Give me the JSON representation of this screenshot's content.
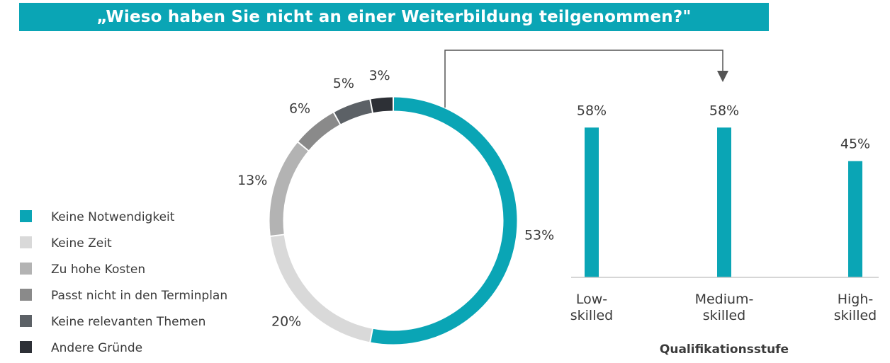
{
  "title": "„Wieso haben Sie nicht an einer Weiterbildung teilgenommen?\"",
  "chart_data": [
    {
      "type": "pie",
      "variant": "donut",
      "categories": [
        "Keine Notwendigkeit",
        "Keine Zeit",
        "Zu hohe Kosten",
        "Passt nicht in den Terminplan",
        "Keine relevanten Themen",
        "Andere Gründe"
      ],
      "values": [
        53,
        20,
        13,
        6,
        5,
        3
      ],
      "labels": [
        "53%",
        "20%",
        "13%",
        "6%",
        "5%",
        "3%"
      ],
      "colors": [
        "#0aa5b5",
        "#d9d9d9",
        "#b3b3b3",
        "#8a8a8a",
        "#5c6166",
        "#2d3036"
      ],
      "legend_position": "left"
    },
    {
      "type": "bar",
      "categories": [
        [
          "Low-",
          "skilled"
        ],
        [
          "Medium-",
          "skilled"
        ],
        [
          "High-",
          "skilled"
        ]
      ],
      "values": [
        58,
        58,
        45
      ],
      "labels": [
        "58%",
        "58%",
        "45%"
      ],
      "xlabel": "Qualifikationsstufe",
      "ylabel": "",
      "ylim": [
        0,
        60
      ],
      "color": "#0aa5b5",
      "grid": false
    }
  ]
}
